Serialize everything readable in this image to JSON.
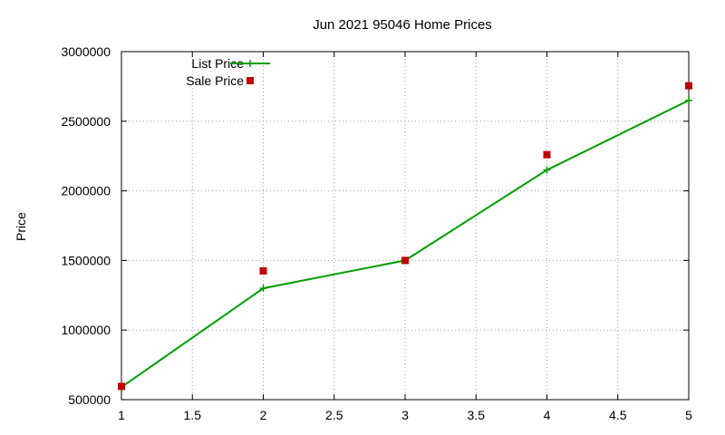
{
  "chart_data": {
    "type": "line",
    "title": "Jun 2021 95046 Home Prices",
    "xlabel": "",
    "ylabel": "Price",
    "xlim": [
      1,
      5
    ],
    "ylim": [
      500000,
      3000000
    ],
    "x_ticks": [
      "1",
      "1.5",
      "2",
      "2.5",
      "3",
      "3.5",
      "4",
      "4.5",
      "5"
    ],
    "y_ticks": [
      "500000",
      "1000000",
      "1500000",
      "2000000",
      "2500000",
      "3000000"
    ],
    "grid": true,
    "legend_position": "top-left",
    "series": [
      {
        "name": "List Price",
        "style": "lines+points",
        "marker": "plus",
        "color": "#009e00",
        "x": [
          1,
          2,
          3,
          4,
          5
        ],
        "y": [
          590000,
          1300000,
          1500000,
          2150000,
          2650000
        ]
      },
      {
        "name": "Sale Price",
        "style": "points",
        "marker": "square",
        "color": "#c00000",
        "x": [
          1,
          2,
          3,
          4,
          5
        ],
        "y": [
          595000,
          1425000,
          1500000,
          2260000,
          2755000
        ]
      }
    ]
  }
}
